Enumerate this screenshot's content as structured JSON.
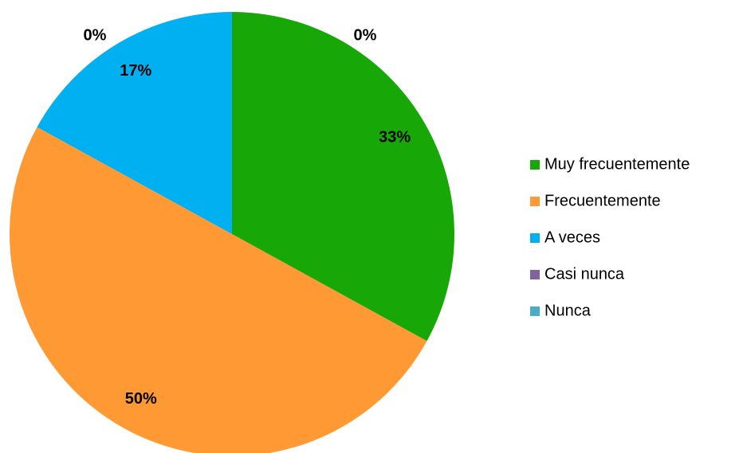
{
  "chart_data": {
    "type": "pie",
    "categories": [
      "Muy frecuentemente",
      "Frecuentemente",
      "A veces",
      "Casi nunca",
      "Nunca"
    ],
    "values": [
      33,
      50,
      17,
      0,
      0
    ],
    "value_labels": [
      "33%",
      "50%",
      "17%",
      "0%",
      "0%"
    ],
    "colors": [
      "#17a808",
      "#ff9933",
      "#00b0f0",
      "#8064a2",
      "#4bacc6"
    ],
    "legend": "right"
  }
}
